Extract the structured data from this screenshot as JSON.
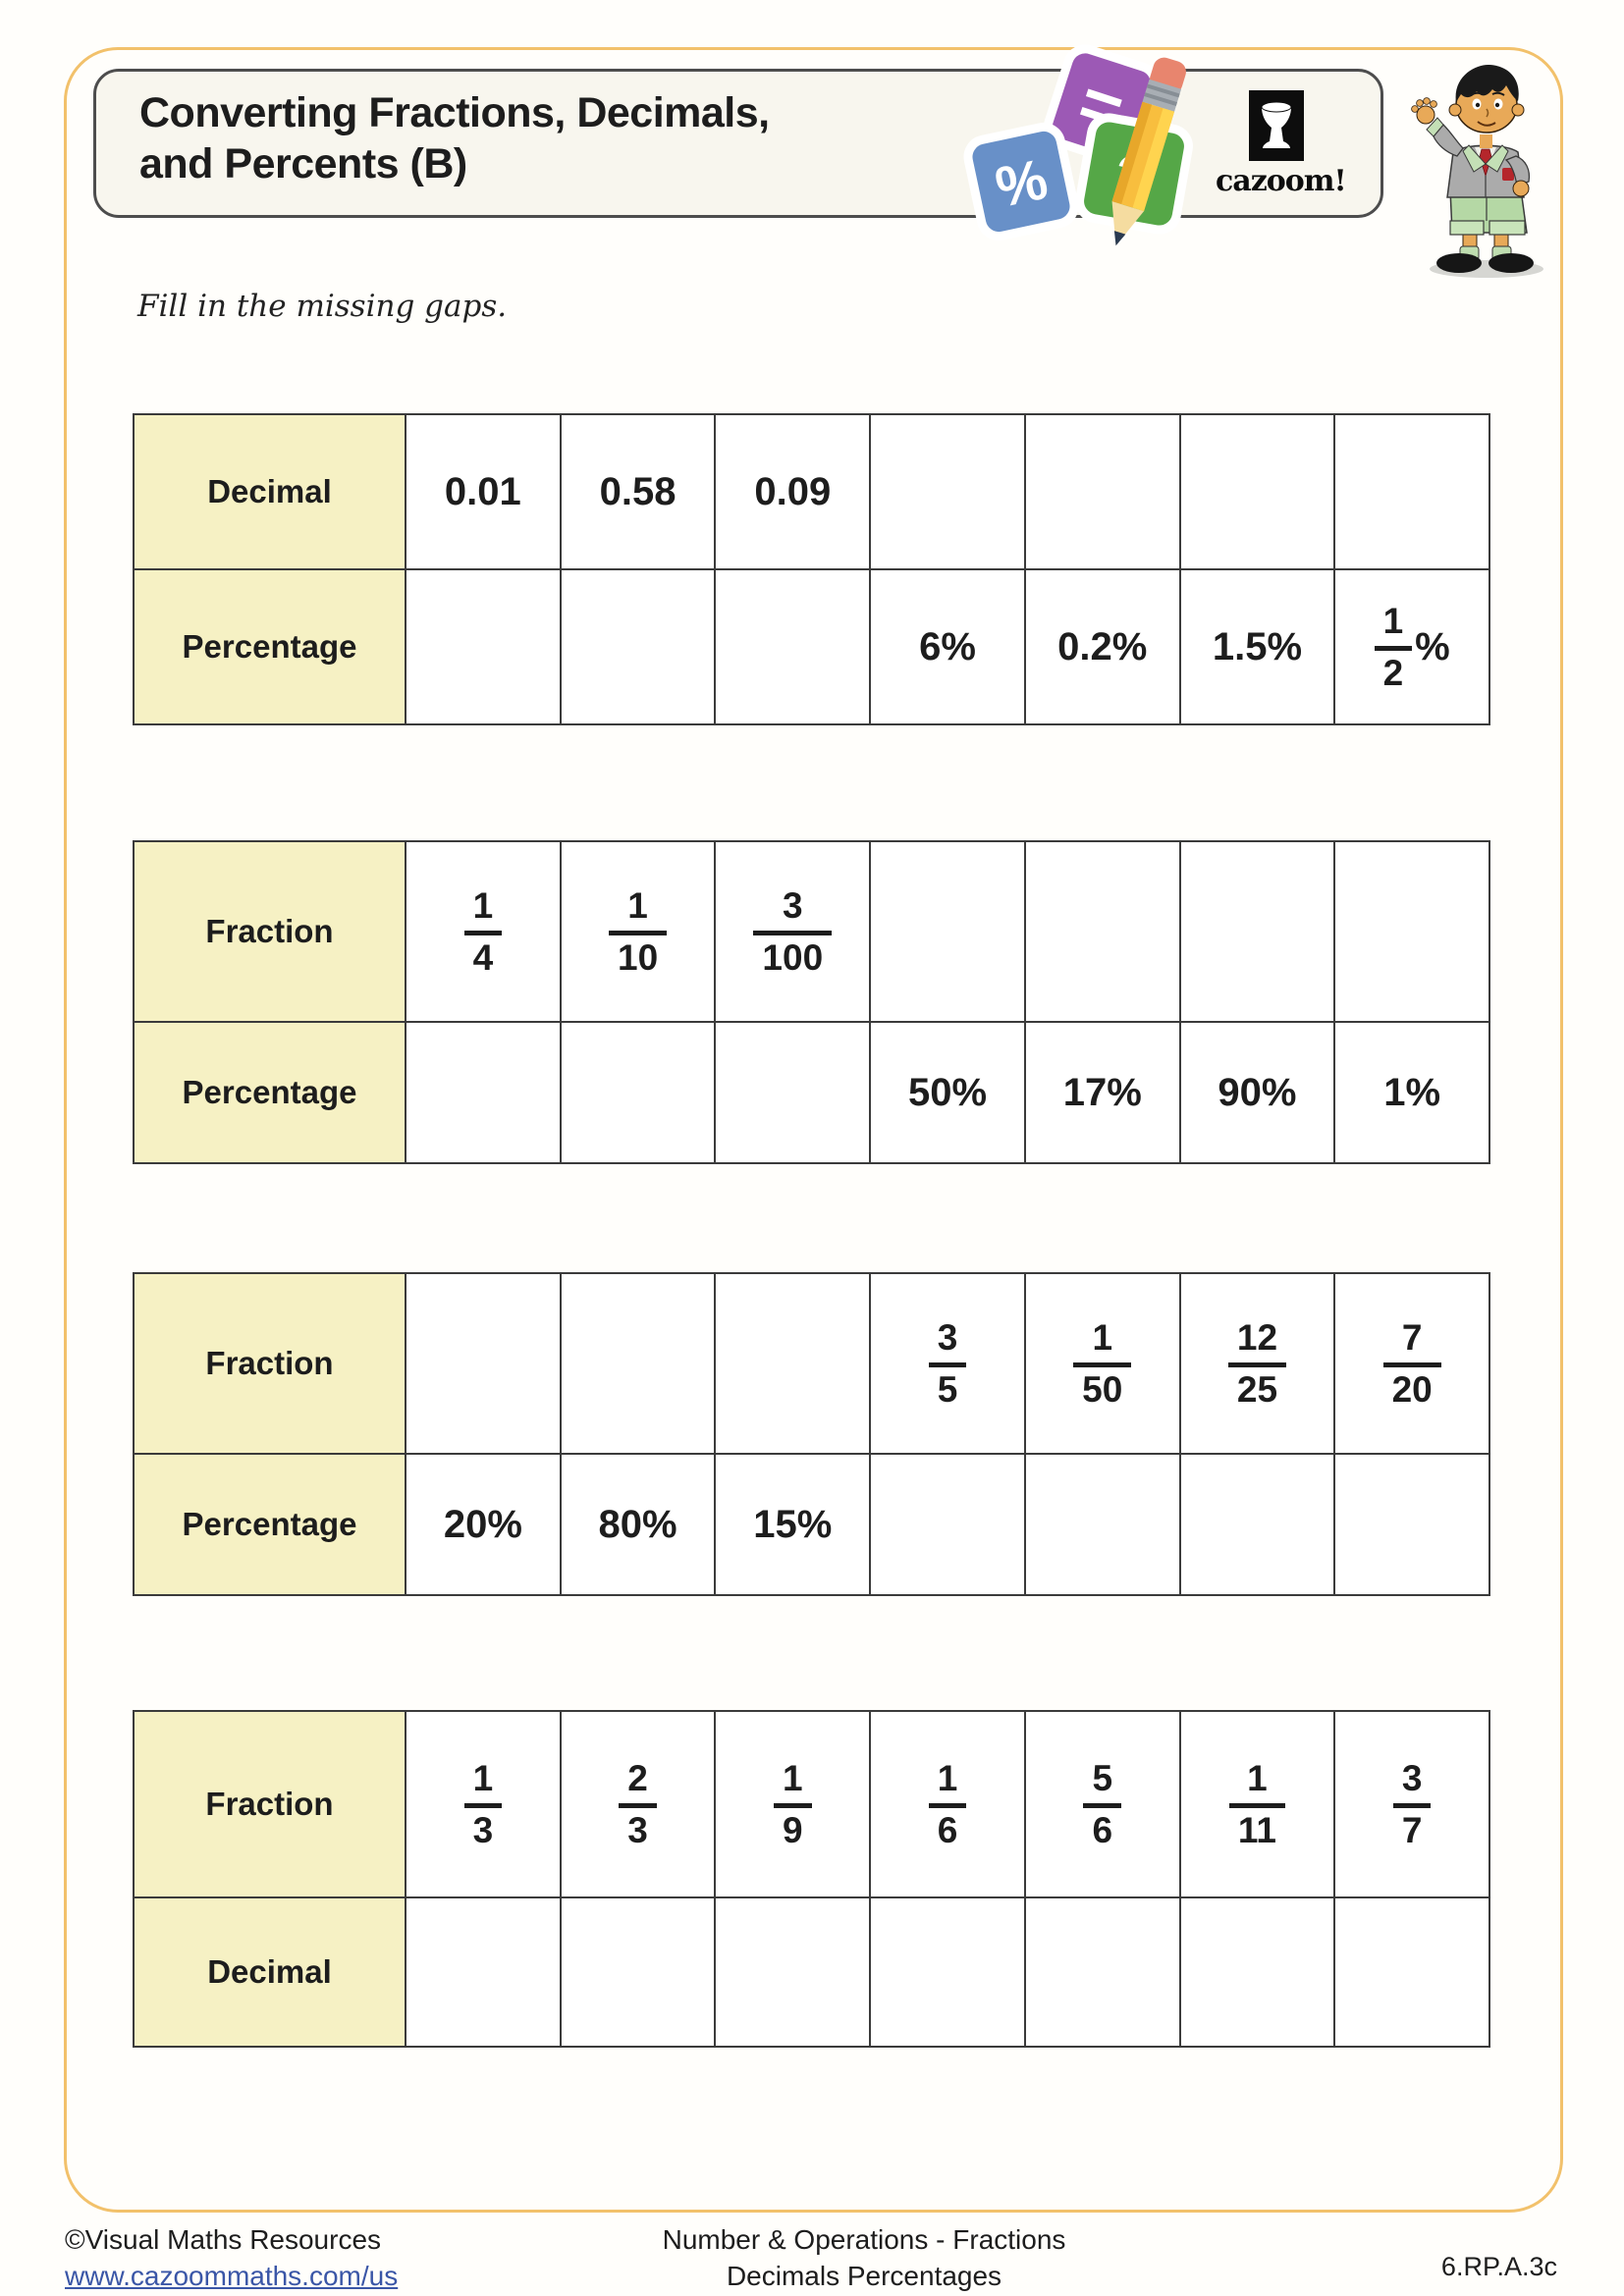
{
  "page": {
    "title_line1": "Converting Fractions, Decimals,",
    "title_line2": "and Percents (B)",
    "instruction": "Fill in the missing gaps.",
    "logo_text": "cazoom!"
  },
  "icons": {
    "equals_glyph": "=",
    "percent_glyph": "%",
    "question_glyph": "?"
  },
  "colors": {
    "frame_accent": "#F2C16B",
    "label_cell_yellow": "#F6F1C4",
    "table_border": "#3b3b3b",
    "link_blue": "#3A56A7",
    "card_purple": "#9C59B5",
    "card_blue": "#6890C8",
    "card_green": "#55A747",
    "pencil_yellow": "#F8BE3E",
    "pencil_eraser": "#E8856E"
  },
  "tables": [
    {
      "rows": [
        {
          "label": "Decimal",
          "cells": [
            "0.01",
            "0.58",
            "0.09",
            "",
            "",
            "",
            ""
          ]
        },
        {
          "label": "Percentage",
          "cells": [
            "",
            "",
            "",
            "6%",
            "0.2%",
            "1.5%",
            {
              "frac": "1/2",
              "suffix": "%"
            }
          ]
        }
      ]
    },
    {
      "rows": [
        {
          "label": "Fraction",
          "cells": [
            {
              "frac": "1/4"
            },
            {
              "frac": "1/10"
            },
            {
              "frac": "3/100"
            },
            "",
            "",
            "",
            ""
          ]
        },
        {
          "label": "Percentage",
          "cells": [
            "",
            "",
            "",
            "50%",
            "17%",
            "90%",
            "1%"
          ]
        }
      ]
    },
    {
      "rows": [
        {
          "label": "Fraction",
          "cells": [
            "",
            "",
            "",
            {
              "frac": "3/5"
            },
            {
              "frac": "1/50"
            },
            {
              "frac": "12/25"
            },
            {
              "frac": "7/20"
            }
          ]
        },
        {
          "label": "Percentage",
          "cells": [
            "20%",
            "80%",
            "15%",
            "",
            "",
            "",
            ""
          ]
        }
      ]
    },
    {
      "rows": [
        {
          "label": "Fraction",
          "cells": [
            {
              "frac": "1/3"
            },
            {
              "frac": "2/3"
            },
            {
              "frac": "1/9"
            },
            {
              "frac": "1/6"
            },
            {
              "frac": "5/6"
            },
            {
              "frac": "1/11"
            },
            {
              "frac": "3/7"
            }
          ]
        },
        {
          "label": "Decimal",
          "cells": [
            "",
            "",
            "",
            "",
            "",
            "",
            ""
          ]
        }
      ]
    }
  ],
  "footer": {
    "copyright": "©Visual Maths Resources",
    "website": "www.cazoommaths.com/us",
    "center_line1": "Number & Operations - Fractions",
    "center_line2": "Decimals Percentages",
    "standard_code": "6.RP.A.3c"
  }
}
